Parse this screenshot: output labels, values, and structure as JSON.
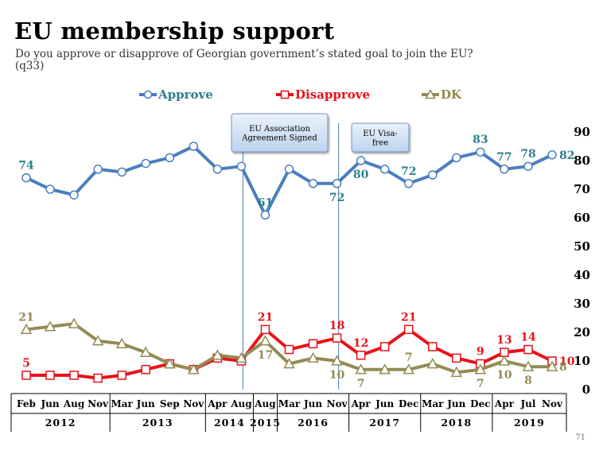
{
  "page": {
    "title": "EU membership support",
    "subtitle": "Do you approve or disapprove of Georgian government’s stated goal to join the EU? (q33)",
    "page_number": "71"
  },
  "colors": {
    "approve": "#4a7fbd",
    "approve_label": "#2e7f8f",
    "disapprove": "#e8111a",
    "dk": "#948a54",
    "annotation_fill_top": "#eaf2fb",
    "annotation_fill_bottom": "#bcd3ee"
  },
  "chart_data": {
    "type": "line",
    "title": "EU membership support",
    "ylim": [
      0,
      90
    ],
    "yticks": [
      0,
      10,
      20,
      30,
      40,
      50,
      60,
      70,
      80,
      90
    ],
    "grid": false,
    "legend_position": "top",
    "categories": [
      "Feb",
      "Jun",
      "Aug",
      "Nov",
      "Mar",
      "Jun",
      "Sep",
      "Nov",
      "Apr",
      "Aug",
      "Aug",
      "Mar",
      "Jun",
      "Nov",
      "Apr",
      "Jun",
      "Dec",
      "Mar",
      "Jun",
      "Dec",
      "Apr",
      "Jul",
      "Nov"
    ],
    "year_groups": [
      {
        "label": "2012",
        "start": 0,
        "end": 3
      },
      {
        "label": "2013",
        "start": 4,
        "end": 7
      },
      {
        "label": "2014",
        "start": 8,
        "end": 9
      },
      {
        "label": "2015",
        "start": 10,
        "end": 10
      },
      {
        "label": "2016",
        "start": 11,
        "end": 13
      },
      {
        "label": "2017",
        "start": 14,
        "end": 16
      },
      {
        "label": "2018",
        "start": 17,
        "end": 19
      },
      {
        "label": "2019",
        "start": 20,
        "end": 22
      }
    ],
    "series": [
      {
        "name": "Approve",
        "color": "#4a7fbd",
        "marker": "circle",
        "values": [
          74,
          70,
          68,
          77,
          76,
          79,
          81,
          85,
          77,
          78,
          61,
          77,
          72,
          72,
          80,
          77,
          72,
          75,
          81,
          83,
          77,
          78,
          82
        ],
        "labels": [
          {
            "index": 0,
            "text": "74",
            "pos": "above"
          },
          {
            "index": 10,
            "text": "61",
            "pos": "above"
          },
          {
            "index": 13,
            "text": "72",
            "pos": "below"
          },
          {
            "index": 14,
            "text": "80",
            "pos": "below"
          },
          {
            "index": 16,
            "text": "72",
            "pos": "above"
          },
          {
            "index": 19,
            "text": "83",
            "pos": "above"
          },
          {
            "index": 20,
            "text": "77",
            "pos": "above"
          },
          {
            "index": 21,
            "text": "78",
            "pos": "above"
          },
          {
            "index": 22,
            "text": "82",
            "pos": "right"
          }
        ]
      },
      {
        "name": "Disapprove",
        "color": "#e8111a",
        "marker": "square",
        "values": [
          5,
          5,
          5,
          4,
          5,
          7,
          9,
          7,
          11,
          10,
          21,
          14,
          16,
          18,
          12,
          15,
          21,
          15,
          11,
          9,
          13,
          14,
          10
        ],
        "labels": [
          {
            "index": 0,
            "text": "5",
            "pos": "above"
          },
          {
            "index": 10,
            "text": "21",
            "pos": "above"
          },
          {
            "index": 13,
            "text": "18",
            "pos": "above"
          },
          {
            "index": 14,
            "text": "12",
            "pos": "above"
          },
          {
            "index": 16,
            "text": "21",
            "pos": "above"
          },
          {
            "index": 19,
            "text": "9",
            "pos": "above"
          },
          {
            "index": 20,
            "text": "13",
            "pos": "above"
          },
          {
            "index": 21,
            "text": "14",
            "pos": "above"
          },
          {
            "index": 22,
            "text": "10",
            "pos": "right"
          }
        ]
      },
      {
        "name": "DK",
        "color": "#948a54",
        "marker": "triangle",
        "values": [
          21,
          22,
          23,
          17,
          16,
          13,
          9,
          7,
          12,
          11,
          17,
          9,
          11,
          10,
          7,
          7,
          7,
          9,
          6,
          7,
          10,
          8,
          8
        ],
        "labels": [
          {
            "index": 0,
            "text": "21",
            "pos": "above"
          },
          {
            "index": 10,
            "text": "17",
            "pos": "below"
          },
          {
            "index": 13,
            "text": "10",
            "pos": "below"
          },
          {
            "index": 14,
            "text": "7",
            "pos": "below"
          },
          {
            "index": 16,
            "text": "7",
            "pos": "above"
          },
          {
            "index": 19,
            "text": "7",
            "pos": "below"
          },
          {
            "index": 20,
            "text": "10",
            "pos": "below"
          },
          {
            "index": 21,
            "text": "8",
            "pos": "below"
          },
          {
            "index": 22,
            "text": "8",
            "pos": "right"
          }
        ]
      }
    ],
    "annotations": [
      {
        "text_lines": [
          "EU Association",
          "Agreement Signed"
        ],
        "after_index": 9
      },
      {
        "text_lines": [
          "EU Visa-",
          "free"
        ],
        "after_index": 13
      }
    ]
  }
}
